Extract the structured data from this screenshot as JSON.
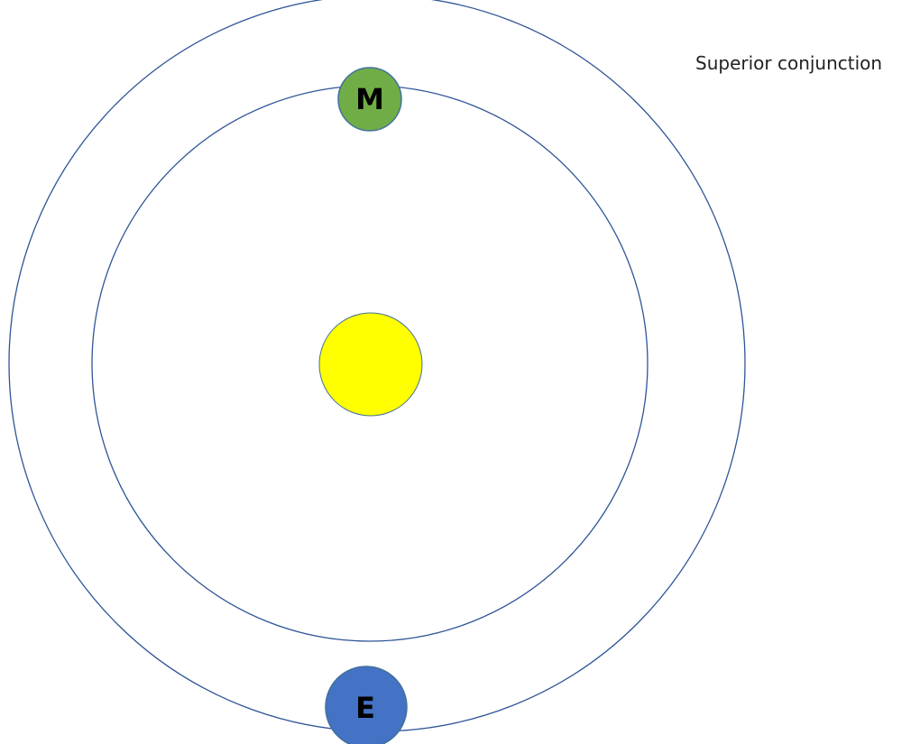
{
  "caption": "Superior conjunction",
  "sun": {
    "color": "#FFFF00",
    "stroke": "#41719C"
  },
  "orbits": {
    "stroke": "#2F5597"
  },
  "mars": {
    "letter": "M",
    "color": "#70AD47",
    "stroke": "#41719C"
  },
  "earth": {
    "letter": "E",
    "color": "#4472C4",
    "stroke": "#41719C"
  }
}
